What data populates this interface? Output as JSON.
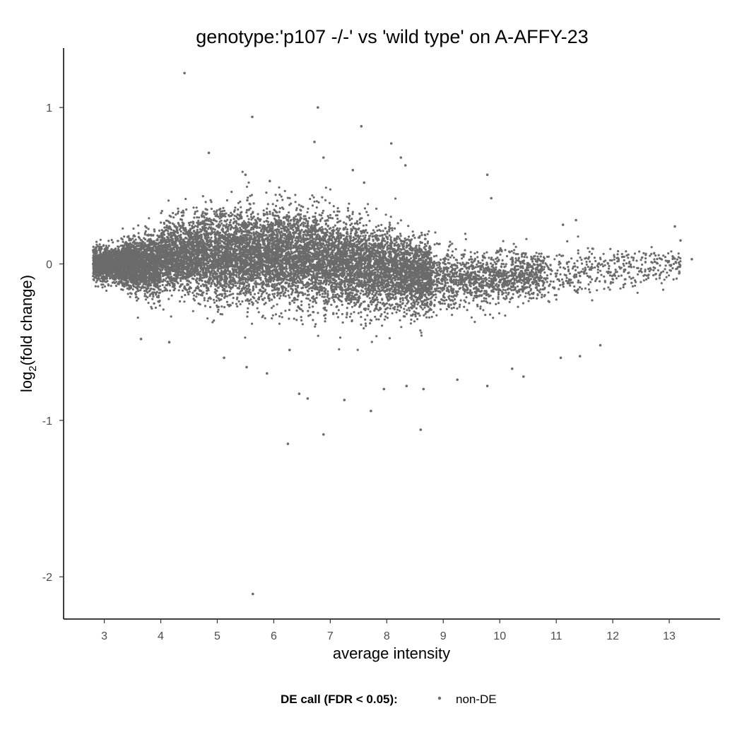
{
  "chart_data": {
    "type": "scatter",
    "title": "genotype:'p107 -/-' vs 'wild type' on A-AFFY-23",
    "xlabel": "average intensity",
    "ylabel": {
      "prefix": "log",
      "subscript": "2",
      "suffix": "(fold change)"
    },
    "xlim": [
      2.28,
      13.9
    ],
    "ylim": [
      -2.27,
      1.38
    ],
    "xticks": [
      3,
      4,
      5,
      6,
      7,
      8,
      9,
      10,
      11,
      12,
      13
    ],
    "yticks": [
      -2,
      -1,
      0,
      1
    ],
    "grid": false,
    "legend": {
      "position": "bottom",
      "title": "DE call (FDR < 0.05):",
      "entries": [
        "non-DE"
      ]
    },
    "series": [
      {
        "name": "non-DE",
        "color": "#6b6b6b",
        "bulk_points_note_free": true,
        "outliers": [
          [
            4.42,
            1.22
          ],
          [
            5.62,
            0.94
          ],
          [
            6.78,
            1.0
          ],
          [
            7.55,
            0.88
          ],
          [
            8.08,
            0.77
          ],
          [
            6.72,
            0.78
          ],
          [
            6.88,
            0.68
          ],
          [
            4.85,
            0.71
          ],
          [
            8.25,
            0.68
          ],
          [
            8.33,
            0.63
          ],
          [
            9.78,
            0.57
          ],
          [
            9.85,
            0.42
          ],
          [
            7.4,
            0.6
          ],
          [
            7.6,
            0.52
          ],
          [
            5.5,
            0.57
          ],
          [
            5.93,
            0.53
          ],
          [
            13.1,
            0.24
          ],
          [
            13.4,
            0.03
          ],
          [
            13.2,
            0.15
          ],
          [
            11.35,
            0.28
          ],
          [
            11.12,
            0.25
          ],
          [
            3.65,
            -0.48
          ],
          [
            4.15,
            -0.5
          ],
          [
            5.12,
            -0.6
          ],
          [
            5.52,
            -0.66
          ],
          [
            5.88,
            -0.7
          ],
          [
            6.28,
            -0.55
          ],
          [
            6.45,
            -0.83
          ],
          [
            6.6,
            -0.86
          ],
          [
            7.25,
            -0.87
          ],
          [
            7.72,
            -0.94
          ],
          [
            7.95,
            -0.8
          ],
          [
            8.35,
            -0.78
          ],
          [
            8.65,
            -0.8
          ],
          [
            9.25,
            -0.74
          ],
          [
            9.78,
            -0.78
          ],
          [
            10.22,
            -0.67
          ],
          [
            10.42,
            -0.72
          ],
          [
            11.08,
            -0.6
          ],
          [
            11.42,
            -0.59
          ],
          [
            11.78,
            -0.52
          ],
          [
            8.6,
            -1.06
          ],
          [
            6.25,
            -1.15
          ],
          [
            6.88,
            -1.09
          ],
          [
            5.63,
            -2.11
          ]
        ]
      }
    ]
  }
}
